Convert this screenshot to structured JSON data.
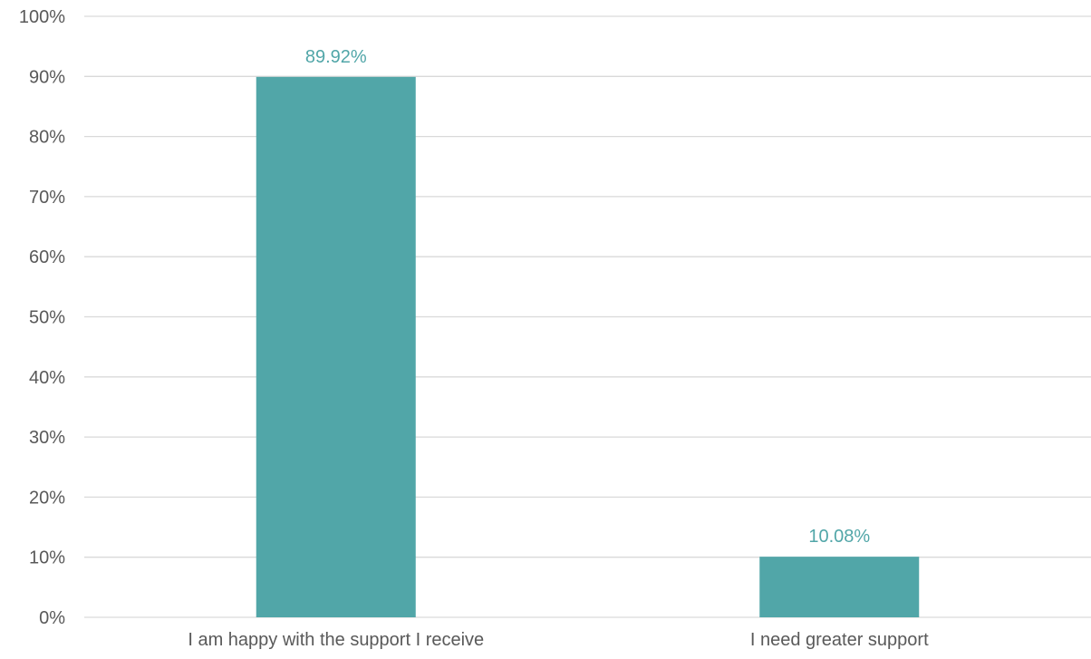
{
  "chart_data": {
    "type": "bar",
    "categories": [
      "I am happy with the support I receive",
      "I need greater support"
    ],
    "values": [
      89.92,
      10.08
    ],
    "data_labels": [
      "89.92%",
      "10.08%"
    ],
    "ylim": [
      0,
      100
    ],
    "yticks": [
      0,
      10,
      20,
      30,
      40,
      50,
      60,
      70,
      80,
      90,
      100
    ],
    "ytick_labels": [
      "0%",
      "10%",
      "20%",
      "30%",
      "40%",
      "50%",
      "60%",
      "70%",
      "80%",
      "90%",
      "100%"
    ],
    "grid": true,
    "colors": {
      "bar": "#51a6a8",
      "data_label": "#51a6a8",
      "gridline": "#d9d9d9",
      "axis_text": "#595959"
    }
  }
}
